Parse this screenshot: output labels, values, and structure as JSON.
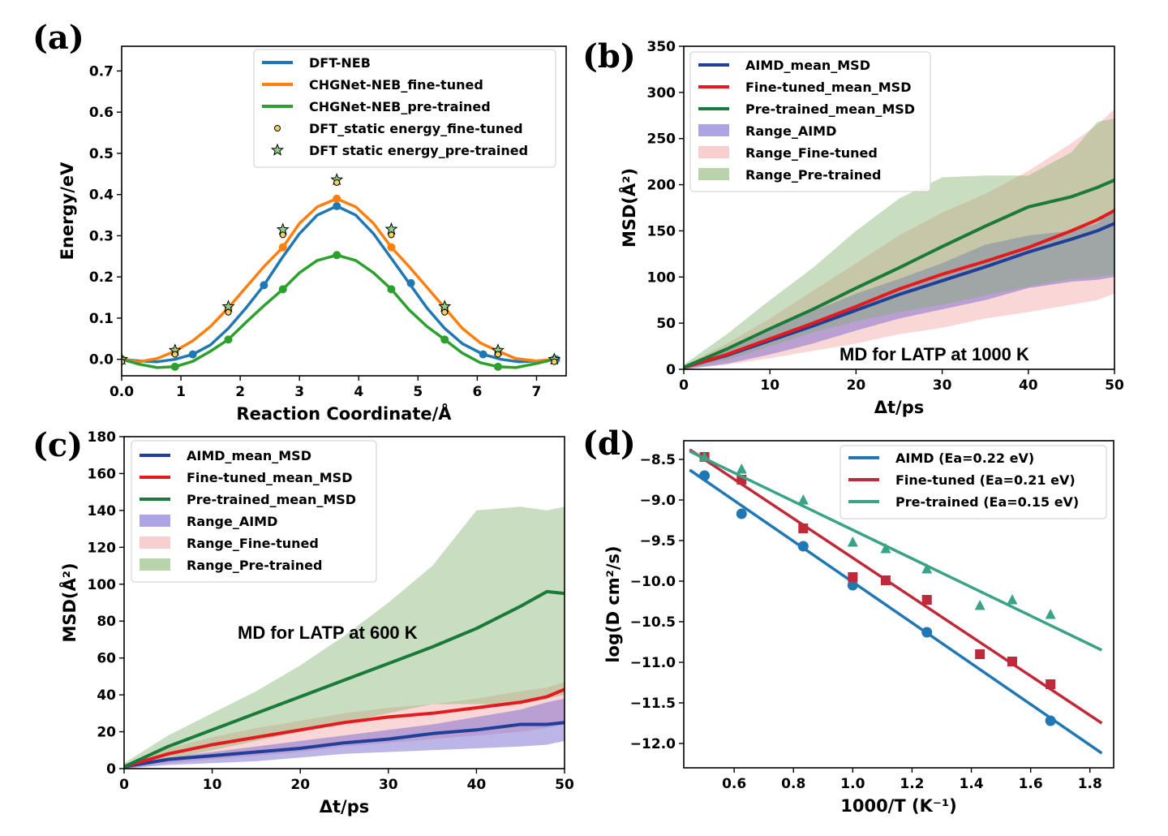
{
  "panel_labels": [
    "(a)",
    "(b)",
    "(c)",
    "(d)"
  ],
  "chart_data": [
    {
      "id": "a",
      "type": "line",
      "xlabel": "Reaction Coordinate/Å",
      "ylabel": "Energy/eV",
      "xlim": [
        0,
        7.5
      ],
      "ylim": [
        -0.04,
        0.76
      ],
      "xticks": [
        0,
        1,
        2,
        3,
        4,
        5,
        6,
        7
      ],
      "yticks": [
        0.0,
        0.1,
        0.2,
        0.3,
        0.4,
        0.5,
        0.6,
        0.7
      ],
      "legend_position": "top-right",
      "series": [
        {
          "name": "DFT-NEB",
          "kind": "line",
          "color": "#1f77b4",
          "curve": [
            [
              0,
              0
            ],
            [
              0.3,
              -0.004
            ],
            [
              0.6,
              -0.006
            ],
            [
              0.9,
              0.0
            ],
            [
              1.2,
              0.012
            ],
            [
              1.5,
              0.035
            ],
            [
              1.8,
              0.075
            ],
            [
              2.1,
              0.125
            ],
            [
              2.4,
              0.18
            ],
            [
              2.7,
              0.245
            ],
            [
              3.0,
              0.305
            ],
            [
              3.3,
              0.35
            ],
            [
              3.63,
              0.372
            ],
            [
              3.95,
              0.35
            ],
            [
              4.25,
              0.305
            ],
            [
              4.55,
              0.245
            ],
            [
              4.85,
              0.185
            ],
            [
              5.15,
              0.125
            ],
            [
              5.45,
              0.075
            ],
            [
              5.75,
              0.038
            ],
            [
              6.1,
              0.012
            ],
            [
              6.4,
              0.0
            ],
            [
              6.7,
              -0.006
            ],
            [
              7.0,
              -0.004
            ],
            [
              7.33,
              0.0
            ]
          ],
          "points": [
            [
              0,
              0
            ],
            [
              1.2,
              0.012
            ],
            [
              2.4,
              0.18
            ],
            [
              3.63,
              0.372
            ],
            [
              4.88,
              0.185
            ],
            [
              6.1,
              0.012
            ],
            [
              7.33,
              0.0
            ]
          ]
        },
        {
          "name": "CHGNet-NEB_fine-tuned",
          "kind": "line",
          "color": "#ff7f0e",
          "curve": [
            [
              0,
              0
            ],
            [
              0.3,
              -0.006
            ],
            [
              0.6,
              0.002
            ],
            [
              0.9,
              0.02
            ],
            [
              1.2,
              0.045
            ],
            [
              1.5,
              0.08
            ],
            [
              1.8,
              0.125
            ],
            [
              2.1,
              0.175
            ],
            [
              2.4,
              0.225
            ],
            [
              2.72,
              0.272
            ],
            [
              3.0,
              0.33
            ],
            [
              3.3,
              0.37
            ],
            [
              3.63,
              0.39
            ],
            [
              3.95,
              0.37
            ],
            [
              4.25,
              0.33
            ],
            [
              4.55,
              0.272
            ],
            [
              4.85,
              0.225
            ],
            [
              5.15,
              0.175
            ],
            [
              5.45,
              0.125
            ],
            [
              5.75,
              0.075
            ],
            [
              6.05,
              0.04
            ],
            [
              6.35,
              0.02
            ],
            [
              6.65,
              0.002
            ],
            [
              7.0,
              -0.004
            ],
            [
              7.3,
              0.0
            ]
          ],
          "points": [
            [
              0,
              0
            ],
            [
              0.9,
              0.02
            ],
            [
              1.8,
              0.125
            ],
            [
              2.72,
              0.272
            ],
            [
              3.63,
              0.39
            ],
            [
              4.55,
              0.272
            ],
            [
              5.45,
              0.125
            ],
            [
              6.35,
              0.02
            ],
            [
              7.3,
              0.0
            ]
          ]
        },
        {
          "name": "CHGNet-NEB_pre-trained",
          "kind": "line",
          "color": "#2ca02c",
          "curve": [
            [
              0,
              0
            ],
            [
              0.3,
              -0.012
            ],
            [
              0.6,
              -0.02
            ],
            [
              0.9,
              -0.018
            ],
            [
              1.2,
              -0.005
            ],
            [
              1.5,
              0.02
            ],
            [
              1.8,
              0.048
            ],
            [
              2.1,
              0.09
            ],
            [
              2.4,
              0.13
            ],
            [
              2.72,
              0.17
            ],
            [
              3.0,
              0.21
            ],
            [
              3.3,
              0.24
            ],
            [
              3.63,
              0.253
            ],
            [
              3.95,
              0.24
            ],
            [
              4.25,
              0.21
            ],
            [
              4.55,
              0.17
            ],
            [
              4.85,
              0.12
            ],
            [
              5.15,
              0.08
            ],
            [
              5.45,
              0.048
            ],
            [
              5.75,
              0.015
            ],
            [
              6.05,
              -0.008
            ],
            [
              6.35,
              -0.018
            ],
            [
              6.65,
              -0.02
            ],
            [
              7.0,
              -0.01
            ],
            [
              7.3,
              0.0
            ]
          ],
          "points": [
            [
              0,
              0
            ],
            [
              0.9,
              -0.018
            ],
            [
              1.8,
              0.048
            ],
            [
              2.72,
              0.17
            ],
            [
              3.63,
              0.253
            ],
            [
              4.55,
              0.17
            ],
            [
              5.45,
              0.048
            ],
            [
              6.35,
              -0.018
            ],
            [
              7.3,
              0.0
            ]
          ]
        },
        {
          "name": "DFT_static energy_fine-tuned",
          "kind": "scatter-circle",
          "color": "#f5d35a",
          "points": [
            [
              0,
              0
            ],
            [
              0.9,
              0.018
            ],
            [
              1.8,
              0.12
            ],
            [
              2.72,
              0.308
            ],
            [
              3.63,
              0.435
            ],
            [
              4.55,
              0.308
            ],
            [
              5.45,
              0.12
            ],
            [
              6.35,
              0.018
            ],
            [
              7.3,
              0.0
            ]
          ]
        },
        {
          "name": "DFT static energy_pre-trained",
          "kind": "scatter-star",
          "color": "#8fce8f",
          "points": [
            [
              0,
              0
            ],
            [
              0.9,
              0.022
            ],
            [
              1.8,
              0.128
            ],
            [
              2.72,
              0.315
            ],
            [
              3.63,
              0.436
            ],
            [
              4.55,
              0.316
            ],
            [
              5.45,
              0.128
            ],
            [
              6.35,
              0.022
            ],
            [
              7.3,
              0.0
            ]
          ]
        }
      ]
    },
    {
      "id": "b",
      "type": "area",
      "xlabel": "Δt/ps",
      "ylabel": "MSD(Å²)",
      "xlim": [
        0,
        50
      ],
      "ylim": [
        0,
        350
      ],
      "xticks": [
        0,
        10,
        20,
        30,
        40,
        50
      ],
      "yticks": [
        0,
        50,
        100,
        150,
        200,
        250,
        300,
        350
      ],
      "annotation": "MD for LATP at 1000 K",
      "legend_position": "top-left",
      "x": [
        0,
        5,
        10,
        15,
        20,
        25,
        30,
        35,
        40,
        45,
        48,
        50
      ],
      "series": [
        {
          "name": "AIMD_mean_MSD",
          "kind": "line",
          "color": "#1f3f99",
          "values": [
            2,
            15,
            31,
            47,
            64,
            81,
            96,
            111,
            127,
            141,
            150,
            158
          ]
        },
        {
          "name": "Fine-tuned_mean_MSD",
          "kind": "line",
          "color": "#e41a1c",
          "values": [
            2,
            16,
            33,
            50,
            68,
            87,
            103,
            117,
            132,
            150,
            162,
            172
          ]
        },
        {
          "name": "Pre-trained_mean_MSD",
          "kind": "line",
          "color": "#1a7a3a",
          "values": [
            2,
            22,
            44,
            65,
            88,
            110,
            133,
            155,
            176,
            187,
            197,
            205
          ]
        },
        {
          "name": "Range_AIMD",
          "kind": "band",
          "color": "#6a5acd",
          "lower": [
            0,
            6,
            16,
            28,
            42,
            55,
            65,
            75,
            88,
            95,
            97,
            100
          ],
          "upper": [
            3,
            20,
            42,
            63,
            82,
            98,
            115,
            135,
            145,
            150,
            158,
            175
          ]
        },
        {
          "name": "Range_Fine-tuned",
          "kind": "band",
          "color": "#f4a6a6",
          "lower": [
            0,
            5,
            12,
            20,
            28,
            38,
            45,
            55,
            62,
            70,
            75,
            82
          ],
          "upper": [
            4,
            28,
            55,
            85,
            115,
            145,
            170,
            190,
            215,
            245,
            265,
            282
          ]
        },
        {
          "name": "Range_Pre-trained",
          "kind": "band",
          "color": "#7fb069",
          "lower": [
            0,
            10,
            25,
            40,
            52,
            62,
            70,
            80,
            90,
            98,
            100,
            103
          ],
          "upper": [
            5,
            38,
            75,
            110,
            150,
            185,
            208,
            210,
            210,
            235,
            268,
            272
          ]
        }
      ]
    },
    {
      "id": "c",
      "type": "area",
      "xlabel": "Δt/ps",
      "ylabel": "MSD(Å²)",
      "xlim": [
        0,
        50
      ],
      "ylim": [
        0,
        180
      ],
      "xticks": [
        0,
        10,
        20,
        30,
        40,
        50
      ],
      "yticks": [
        0,
        20,
        40,
        60,
        80,
        100,
        120,
        140,
        160,
        180
      ],
      "annotation": "MD for LATP at 600 K",
      "legend_position": "top-left",
      "x": [
        0,
        5,
        10,
        15,
        20,
        25,
        30,
        35,
        40,
        45,
        48,
        50
      ],
      "series": [
        {
          "name": "AIMD_mean_MSD",
          "kind": "line",
          "color": "#1f3f99",
          "values": [
            1,
            5,
            7,
            9,
            11,
            14,
            16,
            19,
            21,
            24,
            24,
            25
          ]
        },
        {
          "name": "Fine-tuned_mean_MSD",
          "kind": "line",
          "color": "#e41a1c",
          "values": [
            1,
            8,
            13,
            17,
            21,
            25,
            28,
            30,
            33,
            36,
            39,
            43
          ]
        },
        {
          "name": "Pre-trained_mean_MSD",
          "kind": "line",
          "color": "#1a7a3a",
          "values": [
            1,
            12,
            21,
            30,
            39,
            48,
            57,
            66,
            76,
            88,
            96,
            95
          ]
        },
        {
          "name": "Range_AIMD",
          "kind": "band",
          "color": "#6a5acd",
          "lower": [
            0,
            2,
            3,
            4,
            6,
            8,
            9,
            10,
            11,
            12,
            13,
            15
          ],
          "upper": [
            2,
            6,
            9,
            12,
            15,
            18,
            21,
            24,
            28,
            32,
            36,
            38
          ]
        },
        {
          "name": "Range_Fine-tuned",
          "kind": "band",
          "color": "#f4a6a6",
          "lower": [
            0,
            3,
            5,
            7,
            9,
            12,
            14,
            16,
            18,
            20,
            22,
            24
          ],
          "upper": [
            2,
            11,
            17,
            22,
            26,
            30,
            33,
            35,
            38,
            42,
            44,
            47
          ]
        },
        {
          "name": "Range_Pre-trained",
          "kind": "band",
          "color": "#7fb069",
          "lower": [
            0,
            5,
            10,
            15,
            20,
            25,
            30,
            35,
            35,
            35,
            38,
            40
          ],
          "upper": [
            3,
            18,
            30,
            42,
            56,
            72,
            90,
            110,
            140,
            142,
            140,
            142
          ]
        }
      ]
    },
    {
      "id": "d",
      "type": "scatter",
      "xlabel": "1000/T (K⁻¹)",
      "ylabel": "log(D cm²/s)",
      "xlim": [
        0.43,
        1.88
      ],
      "ylim": [
        -12.3,
        -8.27
      ],
      "xticks": [
        0.4,
        0.6,
        0.8,
        1.0,
        1.2,
        1.4,
        1.6,
        1.8
      ],
      "yticks": [
        -8.5,
        -9.0,
        -9.5,
        -10.0,
        -10.5,
        -11.0,
        -11.5,
        -12.0
      ],
      "legend_position": "top-right",
      "series": [
        {
          "name": "AIMD  (Ea=0.22 eV)",
          "color": "#1f77b4",
          "marker": "circle",
          "points": [
            [
              0.5,
              -8.7
            ],
            [
              0.625,
              -9.17
            ],
            [
              0.833,
              -9.57
            ],
            [
              1.0,
              -10.05
            ],
            [
              1.25,
              -10.63
            ],
            [
              1.667,
              -11.72
            ]
          ],
          "fit": [
            [
              0.45,
              -8.63
            ],
            [
              1.84,
              -12.12
            ]
          ]
        },
        {
          "name": "Fine-tuned  (Ea=0.21 eV)",
          "color": "#c0293a",
          "marker": "square",
          "points": [
            [
              0.5,
              -8.47
            ],
            [
              0.625,
              -8.75
            ],
            [
              0.833,
              -9.35
            ],
            [
              1.0,
              -9.95
            ],
            [
              1.111,
              -9.99
            ],
            [
              1.25,
              -10.23
            ],
            [
              1.429,
              -10.9
            ],
            [
              1.538,
              -10.99
            ],
            [
              1.667,
              -11.27
            ]
          ],
          "fit": [
            [
              0.45,
              -8.38
            ],
            [
              1.84,
              -11.75
            ]
          ]
        },
        {
          "name": "Pre-trained  (Ea=0.15 eV)",
          "color": "#3aa387",
          "marker": "triangle",
          "points": [
            [
              0.5,
              -8.47
            ],
            [
              0.625,
              -8.62
            ],
            [
              0.833,
              -9.0
            ],
            [
              1.0,
              -9.52
            ],
            [
              1.111,
              -9.6
            ],
            [
              1.25,
              -9.85
            ],
            [
              1.429,
              -10.3
            ],
            [
              1.538,
              -10.23
            ],
            [
              1.667,
              -10.41
            ]
          ],
          "fit": [
            [
              0.45,
              -8.4
            ],
            [
              1.84,
              -10.85
            ]
          ]
        }
      ]
    }
  ]
}
